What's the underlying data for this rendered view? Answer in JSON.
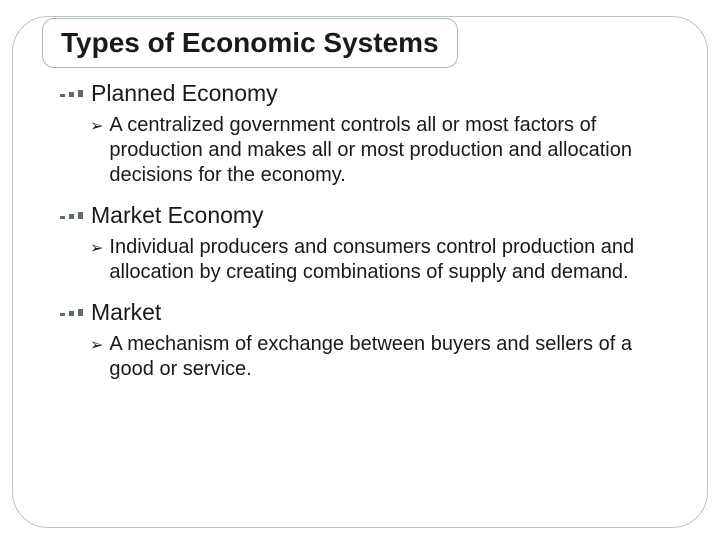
{
  "slide": {
    "title": "Types of Economic Systems",
    "title_fontsize": 28,
    "title_fontweight": "bold",
    "title_color": "#1a1a1a",
    "title_chip_border": "#a9b9c7",
    "frame_border_color": "#b9c9c1",
    "frame_border_radius": 36,
    "background_color": "#ffffff",
    "dot_color": "#5c6b66",
    "section_title_fontsize": 23,
    "bullet_fontsize": 20,
    "arrow_glyph": "➢",
    "sections": [
      {
        "title": "Planned Economy",
        "bullets": [
          "A centralized government controls all or most factors of production and makes all or most production and allocation decisions for the economy."
        ]
      },
      {
        "title": "Market Economy",
        "bullets": [
          "Individual producers and consumers control production and allocation by creating combinations of supply and demand."
        ]
      },
      {
        "title": "Market",
        "bullets": [
          "A mechanism of exchange between buyers and sellers of a good or service."
        ]
      }
    ]
  }
}
